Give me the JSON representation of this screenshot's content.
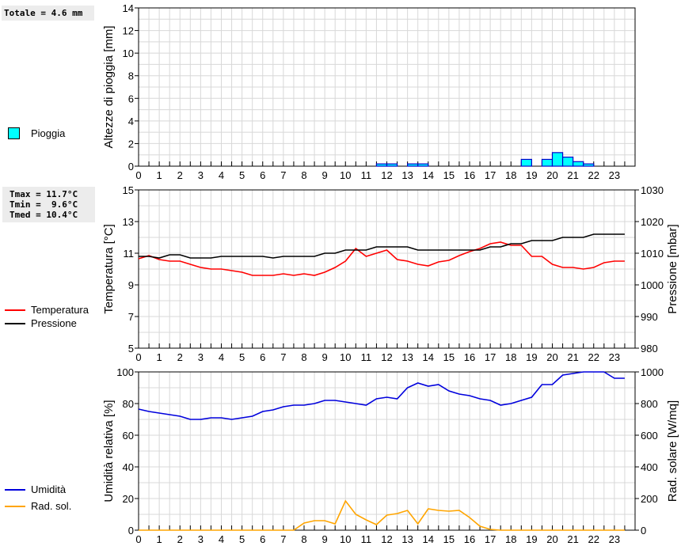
{
  "stats": {
    "rain_total": "Totale = 4.6 mm",
    "tmax": "Tmax = 11.7°C",
    "tmin": "Tmin =  9.6°C",
    "tmed": "Tmed = 10.4°C"
  },
  "legend": {
    "rain": "Pioggia",
    "temp": "Temperatura",
    "press": "Pressione",
    "hum": "Umidità",
    "rad": "Rad. sol."
  },
  "colors": {
    "rain": "#00ffff",
    "temp": "#ff0000",
    "press": "#000000",
    "hum": "#0000dd",
    "rad": "#ffa500"
  },
  "chart_data": [
    {
      "type": "bar",
      "ylabel": "Altezze di pioggia [mm]",
      "ylim": [
        0,
        14
      ],
      "yticks": [
        0,
        2,
        4,
        6,
        8,
        10,
        12,
        14
      ],
      "xlim": [
        0,
        24
      ],
      "xticks": [
        "0",
        "1",
        "2",
        "3",
        "4",
        "5",
        "6",
        "7",
        "8",
        "9",
        "10",
        "11",
        "12",
        "13",
        "14",
        "15",
        "16",
        "17",
        "18",
        "19",
        "20",
        "21",
        "22",
        "23"
      ],
      "bin_width_h": 0.5,
      "series": [
        {
          "name": "Pioggia",
          "x": [
            11.5,
            12,
            13,
            13.5,
            18.5,
            19.5,
            20,
            20.5,
            21,
            21.5
          ],
          "values": [
            0.2,
            0.2,
            0.2,
            0.2,
            0.6,
            0.6,
            1.2,
            0.8,
            0.4,
            0.2
          ]
        }
      ]
    },
    {
      "type": "line",
      "ylabel": "Temperatura [°C]",
      "y2label": "Pressione [mbar]",
      "ylim": [
        5,
        15
      ],
      "yticks": [
        5,
        7,
        9,
        11,
        13,
        15
      ],
      "y2lim": [
        980,
        1030
      ],
      "y2ticks": [
        980,
        990,
        1000,
        1010,
        1020,
        1030
      ],
      "xlim": [
        0,
        24
      ],
      "xticks": [
        "0",
        "1",
        "2",
        "3",
        "4",
        "5",
        "6",
        "7",
        "8",
        "9",
        "10",
        "11",
        "12",
        "13",
        "14",
        "15",
        "16",
        "17",
        "18",
        "19",
        "20",
        "21",
        "22",
        "23"
      ],
      "x": [
        0,
        0.5,
        1,
        1.5,
        2,
        2.5,
        3,
        3.5,
        4,
        4.5,
        5,
        5.5,
        6,
        6.5,
        7,
        7.5,
        8,
        8.5,
        9,
        9.5,
        10,
        10.5,
        11,
        11.5,
        12,
        12.5,
        13,
        13.5,
        14,
        14.5,
        15,
        15.5,
        16,
        16.5,
        17,
        17.5,
        18,
        18.5,
        19,
        19.5,
        20,
        20.5,
        21,
        21.5,
        22,
        22.5,
        23,
        23.5
      ],
      "series": [
        {
          "name": "Temperatura",
          "axis": "left",
          "values": [
            10.65,
            10.85,
            10.6,
            10.5,
            10.5,
            10.3,
            10.1,
            10.0,
            10.0,
            9.9,
            9.8,
            9.6,
            9.6,
            9.6,
            9.7,
            9.6,
            9.7,
            9.6,
            9.8,
            10.1,
            10.5,
            11.3,
            10.8,
            11.0,
            11.2,
            10.6,
            10.5,
            10.3,
            10.2,
            10.45,
            10.55,
            10.85,
            11.1,
            11.3,
            11.6,
            11.7,
            11.5,
            11.5,
            10.8,
            10.8,
            10.3,
            10.1,
            10.1,
            10.0,
            10.1,
            10.4,
            10.5,
            10.5
          ]
        },
        {
          "name": "Pressione",
          "axis": "right",
          "values": [
            1009,
            1009,
            1008.5,
            1009.5,
            1009.5,
            1008.5,
            1008.5,
            1008.5,
            1009,
            1009,
            1009,
            1009,
            1009,
            1008.5,
            1009,
            1009,
            1009,
            1009,
            1010,
            1010,
            1011,
            1011,
            1011,
            1012,
            1012,
            1012,
            1012,
            1011,
            1011,
            1011,
            1011,
            1011,
            1011,
            1011,
            1012,
            1012,
            1013,
            1013,
            1014,
            1014,
            1014,
            1015,
            1015,
            1015,
            1016,
            1016,
            1016,
            1016
          ]
        }
      ]
    },
    {
      "type": "line",
      "ylabel": "Umidità relativa [%]",
      "y2label": "Rad. solare [W/mq]",
      "ylim": [
        0,
        100
      ],
      "yticks": [
        0,
        20,
        40,
        60,
        80,
        100
      ],
      "y2lim": [
        0,
        1000
      ],
      "y2ticks": [
        0,
        200,
        400,
        600,
        800,
        1000
      ],
      "xlim": [
        0,
        24
      ],
      "xticks": [
        "0",
        "1",
        "2",
        "3",
        "4",
        "5",
        "6",
        "7",
        "8",
        "9",
        "10",
        "11",
        "12",
        "13",
        "14",
        "15",
        "16",
        "17",
        "18",
        "19",
        "20",
        "21",
        "22",
        "23"
      ],
      "x": [
        0,
        0.5,
        1,
        1.5,
        2,
        2.5,
        3,
        3.5,
        4,
        4.5,
        5,
        5.5,
        6,
        6.5,
        7,
        7.5,
        8,
        8.5,
        9,
        9.5,
        10,
        10.5,
        11,
        11.5,
        12,
        12.5,
        13,
        13.5,
        14,
        14.5,
        15,
        15.5,
        16,
        16.5,
        17,
        17.5,
        18,
        18.5,
        19,
        19.5,
        20,
        20.5,
        21,
        21.5,
        22,
        22.5,
        23,
        23.5
      ],
      "series": [
        {
          "name": "Umidità",
          "axis": "left",
          "values": [
            76.5,
            75,
            74,
            73,
            72,
            70,
            70,
            71,
            71,
            70,
            71,
            72,
            75,
            76,
            78,
            79,
            79,
            80,
            82,
            82,
            81,
            80,
            79,
            83,
            84,
            83,
            90,
            93,
            91,
            92,
            88,
            86,
            85,
            83,
            82,
            79,
            80,
            82,
            84,
            92,
            92,
            98,
            99,
            100,
            100,
            100,
            96,
            96
          ]
        },
        {
          "name": "Rad. sol.",
          "axis": "right",
          "values": [
            0,
            0,
            0,
            0,
            0,
            0,
            0,
            0,
            0,
            0,
            0,
            0,
            0,
            0,
            0,
            0,
            45,
            60,
            60,
            40,
            185,
            100,
            65,
            35,
            95,
            105,
            125,
            40,
            135,
            125,
            120,
            125,
            80,
            25,
            5,
            0,
            0,
            0,
            0,
            0,
            0,
            0,
            0,
            0,
            0,
            0,
            0,
            0
          ]
        }
      ]
    }
  ]
}
